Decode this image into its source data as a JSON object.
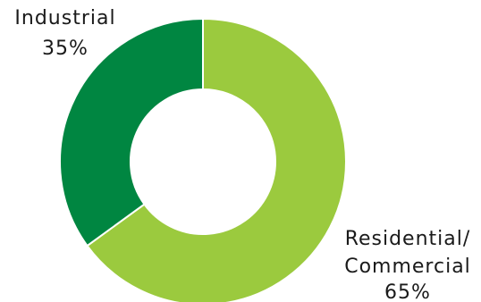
{
  "chart_data": {
    "type": "pie",
    "donut": true,
    "title": "",
    "slices": [
      {
        "label": "Residential/ Commercial",
        "value": 65,
        "value_label": "65%",
        "color": "#9bca3e"
      },
      {
        "label": "Industrial",
        "value": 35,
        "value_label": "35%",
        "color": "#008641"
      }
    ],
    "legend": "none"
  }
}
